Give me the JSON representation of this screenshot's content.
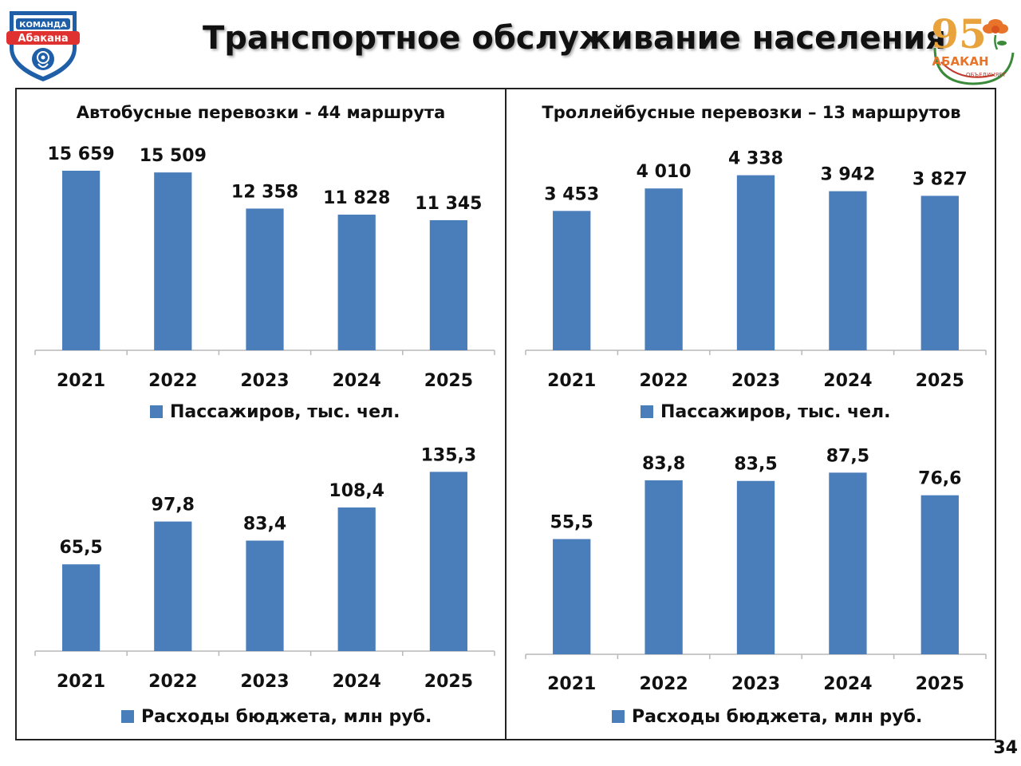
{
  "page": {
    "title": "Транспортное обслуживание населения",
    "page_number": "34",
    "logo_left": {
      "text_top": "КОМАНДА",
      "text_main": "Абакана",
      "icon": "rose-emblem-shield-icon",
      "colors": {
        "blue": "#1f5fa8",
        "red": "#e03131"
      }
    },
    "logo_right": {
      "number": "95",
      "city": "АБАКАН",
      "slogan": "ОБЪЕДИНЯЕТ",
      "icon": "orange-flower-icon",
      "colors": {
        "gold": "#e8a33d",
        "orange": "#e8742a",
        "green": "#3a8a3a",
        "red": "#c0392b"
      }
    },
    "bar_color": "#4a7ebb"
  },
  "sections": [
    {
      "title": "Автобусные перевозки - 44 маршрута"
    },
    {
      "title": "Троллейбусные перевозки – 13 маршрутов"
    }
  ],
  "chart_data": [
    {
      "type": "bar",
      "categories": [
        "2021",
        "2022",
        "2023",
        "2024",
        "2025"
      ],
      "series": [
        {
          "name": "Пассажиров, тыс. чел.",
          "values": [
            15659,
            15509,
            12358,
            11828,
            11345
          ]
        }
      ],
      "labels": [
        "15 659",
        "15 509",
        "12 358",
        "11 828",
        "11 345"
      ],
      "legend": "Пассажиров, тыс. чел.",
      "ylim": [
        0,
        18300
      ]
    },
    {
      "type": "bar",
      "categories": [
        "2021",
        "2022",
        "2023",
        "2024",
        "2025"
      ],
      "series": [
        {
          "name": "Пассажиров, тыс. чел.",
          "values": [
            3453,
            4010,
            4338,
            3942,
            3827
          ]
        }
      ],
      "labels": [
        "3 453",
        "4 010",
        "4 338",
        "3 942",
        "3 827"
      ],
      "legend": "Пассажиров, тыс. чел.",
      "ylim": [
        0,
        5200
      ]
    },
    {
      "type": "bar",
      "categories": [
        "2021",
        "2022",
        "2023",
        "2024",
        "2025"
      ],
      "series": [
        {
          "name": "Расходы бюджета, млн руб.",
          "values": [
            65.5,
            97.8,
            83.4,
            108.4,
            135.3
          ]
        }
      ],
      "labels": [
        "65,5",
        "97,8",
        "83,4",
        "108,4",
        "135,3"
      ],
      "legend": "Расходы бюджета, млн руб.",
      "ylim": [
        0,
        159
      ]
    },
    {
      "type": "bar",
      "categories": [
        "2021",
        "2022",
        "2023",
        "2024",
        "2025"
      ],
      "series": [
        {
          "name": "Расходы бюджета, млн руб.",
          "values": [
            55.5,
            83.8,
            83.5,
            87.5,
            76.6
          ]
        }
      ],
      "labels": [
        "55,5",
        "83,8",
        "83,5",
        "87,5",
        "76,6"
      ],
      "legend": "Расходы бюджета, млн руб.",
      "ylim": [
        0,
        103
      ]
    }
  ]
}
